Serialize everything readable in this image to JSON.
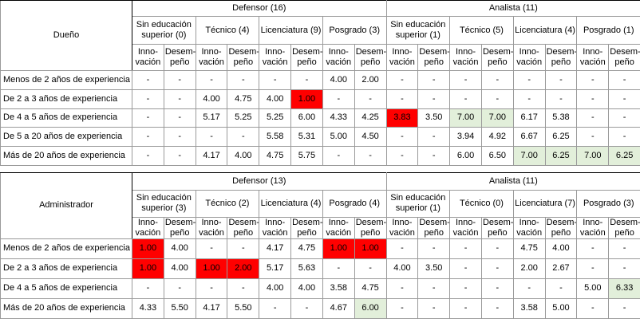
{
  "tables": [
    {
      "corner": "Dueño",
      "groups": [
        {
          "label": "Defensor (16)",
          "subgroups": [
            "Sin educación superior (0)",
            "Técnico (4)",
            "Licenciatura (9)",
            "Posgrado (3)"
          ]
        },
        {
          "label": "Analista (11)",
          "subgroups": [
            "Sin educación superior (1)",
            "Técnico (5)",
            "Licenciatura (4)",
            "Posgrado (1)"
          ]
        }
      ],
      "columns": [
        "Inno-vación",
        "Desem-peño",
        "Inno-vación",
        "Desem-peño",
        "Inno-vación",
        "Desem-peño",
        "Inno-vación",
        "Desem-peño",
        "Inno-vación",
        "Desem-peño",
        "Inno-vación",
        "Desem-peño",
        "Inno-vación",
        "Desem-peño",
        "Inno-vación",
        "Desem-peño"
      ],
      "rows": [
        {
          "label": "Menos de 2 años de experiencia",
          "cells": [
            "-",
            "-",
            "-",
            "-",
            "-",
            "-",
            "4.00",
            "2.00",
            "-",
            "-",
            "-",
            "-",
            "-",
            "-",
            "-",
            "-"
          ]
        },
        {
          "label": "De 2 a 3 años de experiencia",
          "cells": [
            "-",
            "-",
            "4.00",
            "4.75",
            "4.00",
            "1.00",
            "-",
            "-",
            "-",
            "-",
            "-",
            "-",
            "-",
            "-",
            "-",
            "-"
          ]
        },
        {
          "label": "De 4 a 5 años de experiencia",
          "cells": [
            "-",
            "-",
            "5.17",
            "5.25",
            "5.25",
            "6.00",
            "4.33",
            "4.25",
            "3.83",
            "3.50",
            "7.00",
            "7.00",
            "6.17",
            "5.38",
            "-",
            "-"
          ]
        },
        {
          "label": "De 5 a 20 años de experiencia",
          "cells": [
            "-",
            "-",
            "-",
            "-",
            "5.58",
            "5.31",
            "5.00",
            "4.50",
            "-",
            "-",
            "3.94",
            "4.92",
            "6.67",
            "6.25",
            "-",
            "-"
          ]
        },
        {
          "label": "Más de 20 años de experiencia",
          "cells": [
            "-",
            "-",
            "4.17",
            "4.00",
            "4.75",
            "5.75",
            "-",
            "-",
            "-",
            "-",
            "6.00",
            "6.50",
            "7.00",
            "6.25",
            "7.00",
            "6.25"
          ]
        }
      ]
    },
    {
      "corner": "Administrador",
      "groups": [
        {
          "label": "Defensor (13)",
          "subgroups": [
            "Sin educación superior (3)",
            "Técnico (2)",
            "Licenciatura (4)",
            "Posgrado (4)"
          ]
        },
        {
          "label": "Analista (11)",
          "subgroups": [
            "Sin educación superior (1)",
            "Técnico (0)",
            "Licenciatura (7)",
            "Posgrado (3)"
          ]
        }
      ],
      "columns": [
        "Inno-vación",
        "Desem-peño",
        "Inno-vación",
        "Desem-peño",
        "Inno-vación",
        "Desem-peño",
        "Inno-vación",
        "Desem-peño",
        "Inno-vación",
        "Desem-peño",
        "Inno-vación",
        "Desem-peño",
        "Inno-vación",
        "Desem-peño",
        "Inno-vación",
        "Desem-peño"
      ],
      "rows": [
        {
          "label": "Menos de 2 años de experiencia",
          "cells": [
            "1.00",
            "4.00",
            "-",
            "-",
            "4.17",
            "4.75",
            "1.00",
            "1.00",
            "-",
            "-",
            "-",
            "-",
            "4.75",
            "4.00",
            "-",
            "-"
          ]
        },
        {
          "label": "De 2 a 3 años de experiencia",
          "cells": [
            "1.00",
            "4.00",
            "1.00",
            "2.00",
            "5.17",
            "5.63",
            "-",
            "-",
            "4.00",
            "3.50",
            "-",
            "-",
            "2.00",
            "2.67",
            "-",
            "-"
          ]
        },
        {
          "label": "De 4 a 5 años de experiencia",
          "cells": [
            "-",
            "-",
            "-",
            "-",
            "4.00",
            "4.00",
            "3.58",
            "4.75",
            "-",
            "-",
            "-",
            "-",
            "-",
            "-",
            "5.00",
            "6.33"
          ]
        },
        {
          "label": "Más de 20 años de experiencia",
          "cells": [
            "4.33",
            "5.50",
            "4.17",
            "5.50",
            "-",
            "-",
            "4.67",
            "6.00",
            "-",
            "-",
            "-",
            "-",
            "3.58",
            "5.00",
            "-",
            "-"
          ]
        }
      ]
    }
  ]
}
